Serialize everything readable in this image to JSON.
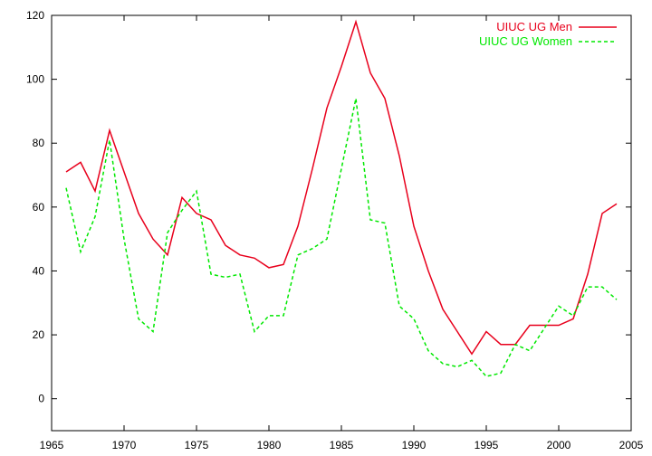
{
  "chart_data": {
    "type": "line",
    "title": "",
    "xlabel": "",
    "ylabel": "",
    "xlim": [
      1965,
      2005
    ],
    "ylim": [
      -10,
      120
    ],
    "xticks": [
      1965,
      1970,
      1975,
      1980,
      1985,
      1990,
      1995,
      2000,
      2005
    ],
    "yticks": [
      0,
      20,
      40,
      60,
      80,
      100,
      120
    ],
    "grid": false,
    "legend_position": "top-right",
    "series": [
      {
        "name": "UIUC UG Men",
        "color": "#e8001c",
        "dash": "solid",
        "x": [
          1966,
          1967,
          1968,
          1969,
          1970,
          1971,
          1972,
          1973,
          1974,
          1975,
          1976,
          1977,
          1978,
          1979,
          1980,
          1981,
          1982,
          1983,
          1984,
          1985,
          1986,
          1987,
          1988,
          1989,
          1990,
          1991,
          1992,
          1993,
          1994,
          1995,
          1996,
          1997,
          1998,
          1999,
          2000,
          2001,
          2002,
          2003,
          2004
        ],
        "values": [
          71,
          74,
          65,
          84,
          71,
          58,
          50,
          45,
          63,
          58,
          56,
          48,
          45,
          44,
          41,
          42,
          54,
          72,
          91,
          104,
          118,
          102,
          94,
          76,
          54,
          40,
          28,
          21,
          14,
          21,
          17,
          17,
          23,
          23,
          23,
          25,
          39,
          58,
          61
        ]
      },
      {
        "name": "UIUC UG Women",
        "color": "#00e800",
        "dash": "dashed",
        "x": [
          1966,
          1967,
          1968,
          1969,
          1970,
          1971,
          1972,
          1973,
          1974,
          1975,
          1976,
          1977,
          1978,
          1979,
          1980,
          1981,
          1982,
          1983,
          1984,
          1985,
          1986,
          1987,
          1988,
          1989,
          1990,
          1991,
          1992,
          1993,
          1994,
          1995,
          1996,
          1997,
          1998,
          1999,
          2000,
          2001,
          2002,
          2003,
          2004
        ],
        "values": [
          66,
          46,
          57,
          81,
          50,
          25,
          21,
          52,
          59,
          65,
          39,
          38,
          39,
          21,
          26,
          26,
          45,
          47,
          50,
          72,
          94,
          56,
          55,
          29,
          25,
          15,
          11,
          10,
          12,
          7,
          8,
          17,
          15,
          22,
          29,
          26,
          35,
          35,
          31
        ]
      }
    ]
  }
}
